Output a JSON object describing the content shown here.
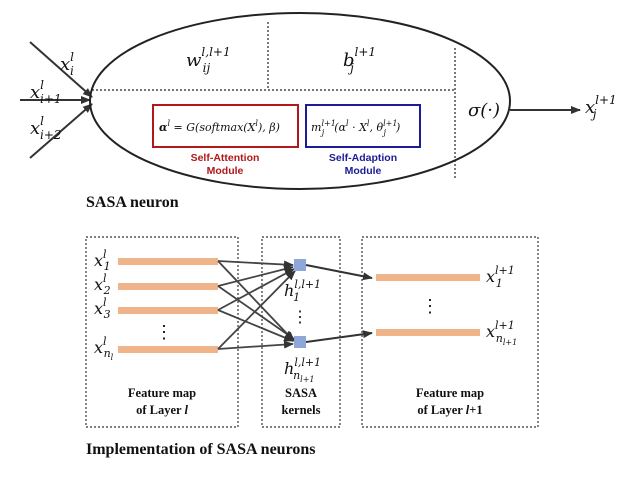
{
  "neuron": {
    "title": "SASA neuron",
    "inputs": [
      {
        "base": "x",
        "sub": "i",
        "sup": "l"
      },
      {
        "base": "x",
        "sub": "i+1",
        "sup": "l"
      },
      {
        "base": "x",
        "sub": "i+2",
        "sup": "l"
      }
    ],
    "weight": {
      "base": "w",
      "sub": "ij",
      "sup": "l,l+1"
    },
    "bias": {
      "base": "b",
      "sub": "j",
      "sup": "l+1"
    },
    "activation": "σ(·)",
    "output": {
      "base": "x",
      "sub": "j",
      "sup": "l+1"
    },
    "self_attention": {
      "formula_lhs": "α",
      "formula_rhs": " = G(softmax(X",
      "formula_tail": "), β)",
      "label_line1": "Self-Attention",
      "label_line2": "Module",
      "color": "#b0181c"
    },
    "self_adaption": {
      "formula": "m",
      "formula_rest": "(α",
      "formula_mid": " · X",
      "formula_end": ", θ",
      "formula_close": ")",
      "label_line1": "Self-Adaption",
      "label_line2": "Module",
      "color": "#1c1c96"
    }
  },
  "implementation": {
    "title": "Implementation of SASA neurons",
    "layer_l": {
      "items": [
        {
          "base": "x",
          "sub": "1",
          "sup": "l"
        },
        {
          "base": "x",
          "sub": "2",
          "sup": "l"
        },
        {
          "base": "x",
          "sub": "3",
          "sup": "l"
        },
        {
          "base": "x",
          "sub": "n",
          "subsub": "l",
          "sup": "l"
        }
      ],
      "label_line1": "Feature map",
      "label_line2": "of Layer",
      "label_var": "l"
    },
    "kernels": {
      "items": [
        {
          "base": "h",
          "sub": "1",
          "sup": "l,l+1"
        },
        {
          "base": "h",
          "sub": "n",
          "subsub": "l+1",
          "sup": "l,l+1"
        }
      ],
      "label_line1": "SASA",
      "label_line2": "kernels"
    },
    "layer_l1": {
      "items": [
        {
          "base": "x",
          "sub": "1",
          "sup": "l+1"
        },
        {
          "base": "x",
          "sub": "n",
          "subsub": "l+1",
          "sup": "l+1"
        }
      ],
      "label_line1": "Feature map",
      "label_line2": "of Layer",
      "label_var": "l",
      "label_suffix": "+1"
    },
    "ellipsis": "⋮",
    "bar_color": "#f0b48a",
    "kernel_color": "#8fa6d8"
  }
}
